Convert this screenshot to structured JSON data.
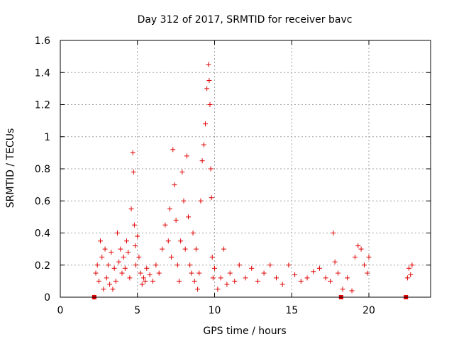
{
  "chart_data": {
    "type": "scatter",
    "title": "Day 312 of 2017, SRMTID for receiver bavc",
    "xlabel": "GPS time / hours",
    "ylabel": "SRMTID / TECUs",
    "xlim": [
      0,
      24
    ],
    "ylim": [
      0,
      1.6
    ],
    "xticks": [
      0,
      5,
      10,
      15,
      20
    ],
    "xtick_labels": [
      "0",
      "5",
      "10",
      "15",
      "20"
    ],
    "yticks": [
      0,
      0.2,
      0.4,
      0.6,
      0.8,
      1.0,
      1.2,
      1.4,
      1.6
    ],
    "ytick_labels": [
      "0",
      "0.2",
      "0.4",
      "0.6",
      "0.8",
      "1",
      "1.2",
      "1.4",
      "1.6"
    ],
    "grid": true,
    "marker": "plus",
    "color": "#e00000",
    "series": [
      {
        "name": "SRMTID",
        "x": [
          2.2,
          2.3,
          2.4,
          2.5,
          2.6,
          2.7,
          2.8,
          2.9,
          3.0,
          3.1,
          3.2,
          3.3,
          3.4,
          3.5,
          3.6,
          3.7,
          3.8,
          3.9,
          4.0,
          4.1,
          4.2,
          4.3,
          4.4,
          4.5,
          4.6,
          4.7,
          4.75,
          4.8,
          4.85,
          4.9,
          5.0,
          5.1,
          5.2,
          5.3,
          5.4,
          5.5,
          5.6,
          5.8,
          6.0,
          6.2,
          6.4,
          6.6,
          6.8,
          7.0,
          7.1,
          7.2,
          7.3,
          7.4,
          7.5,
          7.6,
          7.7,
          7.8,
          7.9,
          8.0,
          8.1,
          8.2,
          8.3,
          8.4,
          8.5,
          8.6,
          8.7,
          8.8,
          8.9,
          9.0,
          9.1,
          9.2,
          9.3,
          9.4,
          9.5,
          9.6,
          9.65,
          9.7,
          9.75,
          9.8,
          9.85,
          9.9,
          10.0,
          10.2,
          10.4,
          10.6,
          10.8,
          11.0,
          11.3,
          11.6,
          12.0,
          12.4,
          12.8,
          13.2,
          13.6,
          14.0,
          14.4,
          14.8,
          15.2,
          15.6,
          16.0,
          16.4,
          16.8,
          17.2,
          17.5,
          17.7,
          17.8,
          18.0,
          18.3,
          18.6,
          18.9,
          19.1,
          19.3,
          19.5,
          19.7,
          19.9,
          20.0,
          22.5,
          22.6,
          22.7,
          22.8
        ],
        "y": [
          0.0,
          0.15,
          0.2,
          0.1,
          0.35,
          0.25,
          0.05,
          0.3,
          0.12,
          0.2,
          0.08,
          0.28,
          0.05,
          0.18,
          0.1,
          0.4,
          0.22,
          0.3,
          0.15,
          0.25,
          0.18,
          0.35,
          0.28,
          0.12,
          0.55,
          0.9,
          0.78,
          0.45,
          0.32,
          0.2,
          0.38,
          0.25,
          0.15,
          0.08,
          0.12,
          0.1,
          0.18,
          0.14,
          0.1,
          0.2,
          0.15,
          0.3,
          0.45,
          0.35,
          0.55,
          0.25,
          0.92,
          0.7,
          0.48,
          0.2,
          0.1,
          0.35,
          0.78,
          0.6,
          0.3,
          0.88,
          0.5,
          0.2,
          0.15,
          0.4,
          0.1,
          0.3,
          0.05,
          0.15,
          0.6,
          0.85,
          0.95,
          1.08,
          1.3,
          1.45,
          1.35,
          1.2,
          0.8,
          0.62,
          0.25,
          0.12,
          0.18,
          0.05,
          0.12,
          0.3,
          0.08,
          0.15,
          0.1,
          0.2,
          0.12,
          0.18,
          0.1,
          0.15,
          0.2,
          0.12,
          0.08,
          0.2,
          0.14,
          0.1,
          0.12,
          0.16,
          0.18,
          0.12,
          0.1,
          0.4,
          0.22,
          0.15,
          0.05,
          0.12,
          0.04,
          0.25,
          0.32,
          0.3,
          0.2,
          0.15,
          0.25,
          0.12,
          0.18,
          0.14,
          0.2
        ]
      }
    ],
    "zero_markers_x": [
      2.2,
      18.2,
      22.4
    ]
  }
}
